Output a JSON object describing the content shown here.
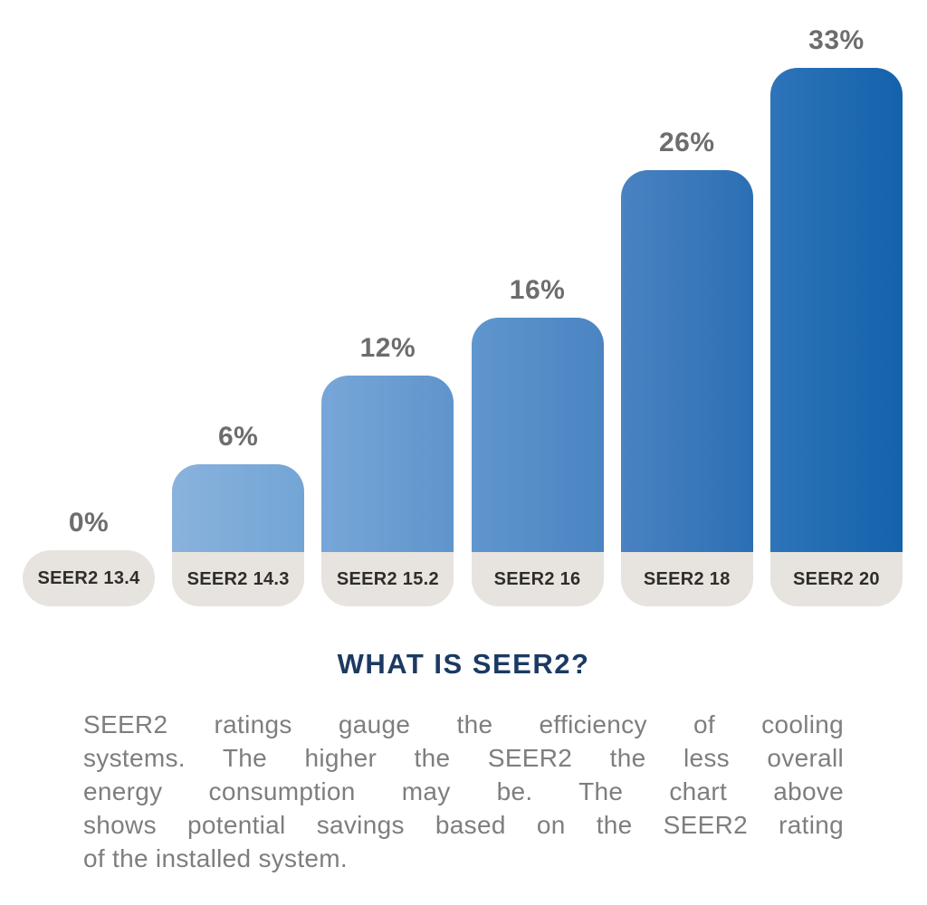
{
  "chart_data": {
    "type": "bar",
    "title": "WHAT IS SEER2?",
    "xlabel": "",
    "ylabel": "",
    "categories": [
      "SEER2 13.4",
      "SEER2 14.3",
      "SEER2 15.2",
      "SEER2 16",
      "SEER2 18",
      "SEER2 20"
    ],
    "values": [
      0,
      6,
      12,
      16,
      26,
      33
    ],
    "value_labels": [
      "0%",
      "6%",
      "12%",
      "16%",
      "26%",
      "33%"
    ],
    "ylim": [
      0,
      33
    ],
    "grid": false,
    "legend": false,
    "bar_gradients": [
      null,
      [
        "#8ab2dd",
        "#72a5d5"
      ],
      [
        "#77a7d8",
        "#5f94cb"
      ],
      [
        "#6096ce",
        "#4a84c2"
      ],
      [
        "#4a82c2",
        "#2b6fb4"
      ],
      [
        "#2e74b9",
        "#1462ab"
      ]
    ],
    "category_pill_color": "#e7e4df",
    "category_text_color": "#2f2d2a",
    "value_label_color": "#6d6d6d"
  },
  "info": {
    "heading": "WHAT IS SEER2?",
    "heading_color": "#1b3a62",
    "body_color": "#7e7e7e",
    "body_lines": [
      "SEER2 ratings gauge the efficiency of cooling",
      "systems. The higher the SEER2 the less overall",
      "energy consumption may be. The chart above",
      "shows potential savings based on the SEER2 rating",
      "of the installed system."
    ]
  }
}
